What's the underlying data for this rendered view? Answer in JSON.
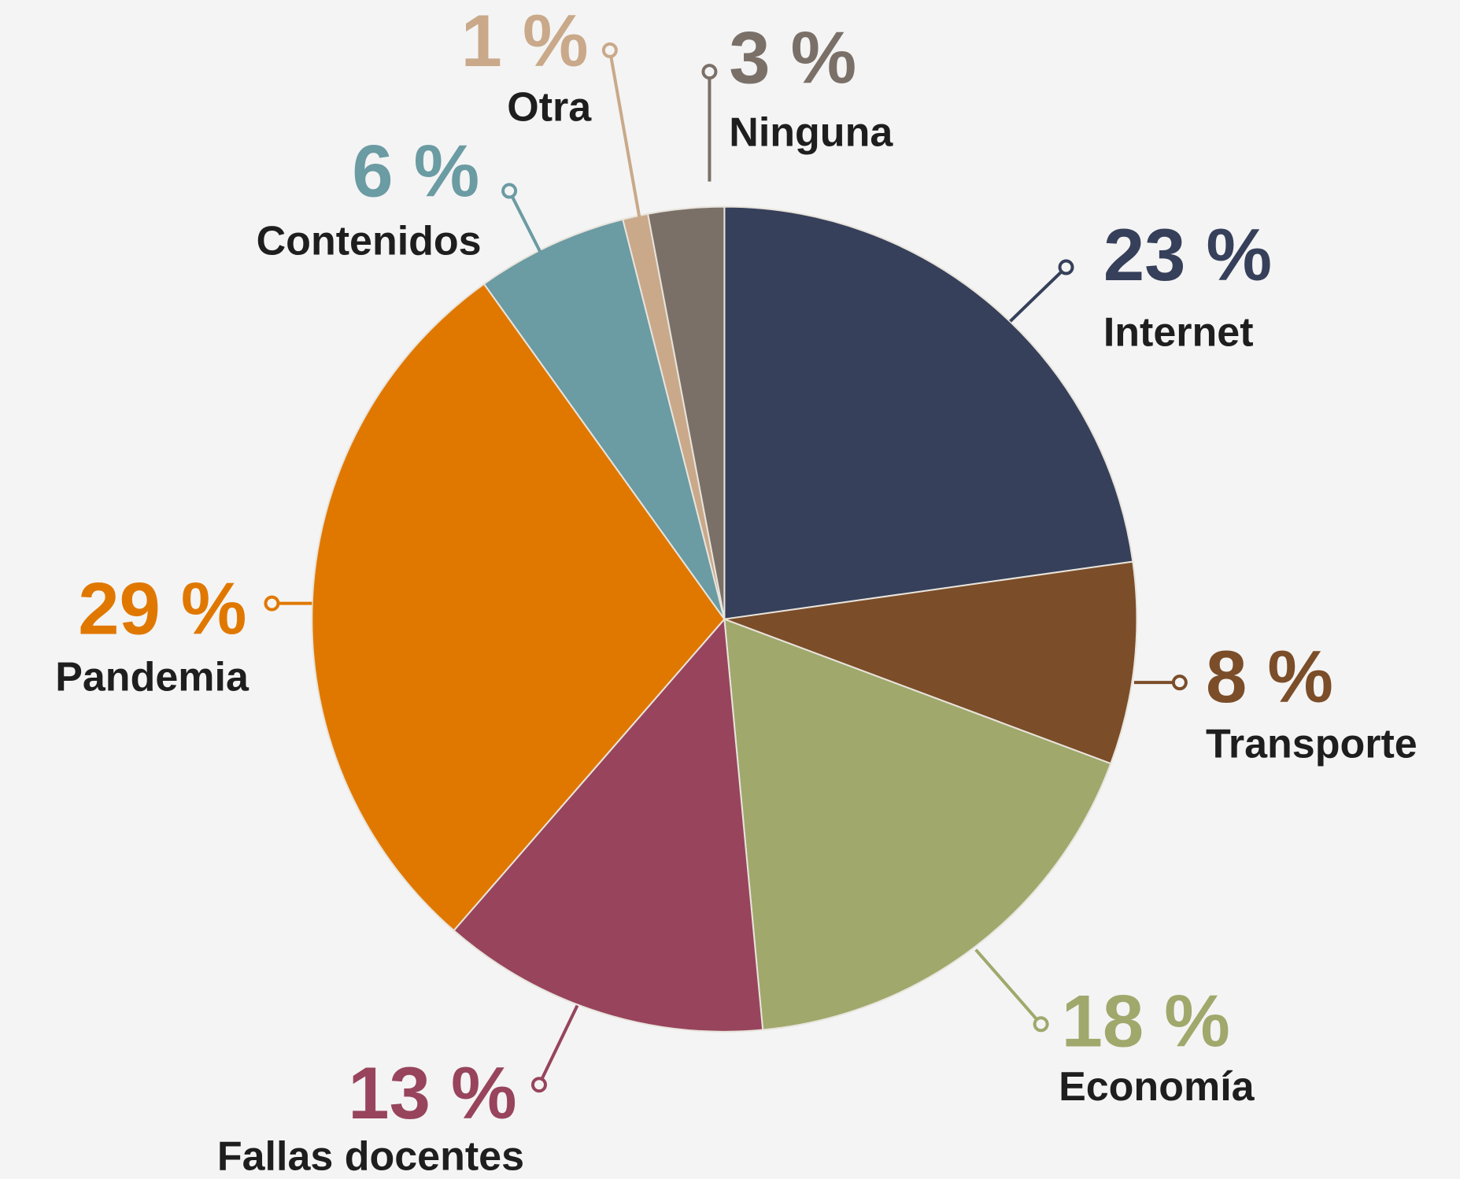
{
  "chart_data": {
    "type": "pie",
    "categories": [
      "Internet",
      "Transporte",
      "Economía",
      "Fallas docentes",
      "Pandemia",
      "Contenidos",
      "Otra",
      "Ninguna"
    ],
    "values": [
      23,
      8,
      18,
      13,
      29,
      6,
      1,
      3
    ],
    "value_labels": [
      "23 %",
      "8 %",
      "18 %",
      "13 %",
      "29 %",
      "6 %",
      "1 %",
      "3 %"
    ],
    "colors": [
      "#36405a",
      "#7b4d29",
      "#a0a86c",
      "#97445c",
      "#e07800",
      "#6b9ba3",
      "#c9a98a",
      "#7a7068"
    ]
  }
}
